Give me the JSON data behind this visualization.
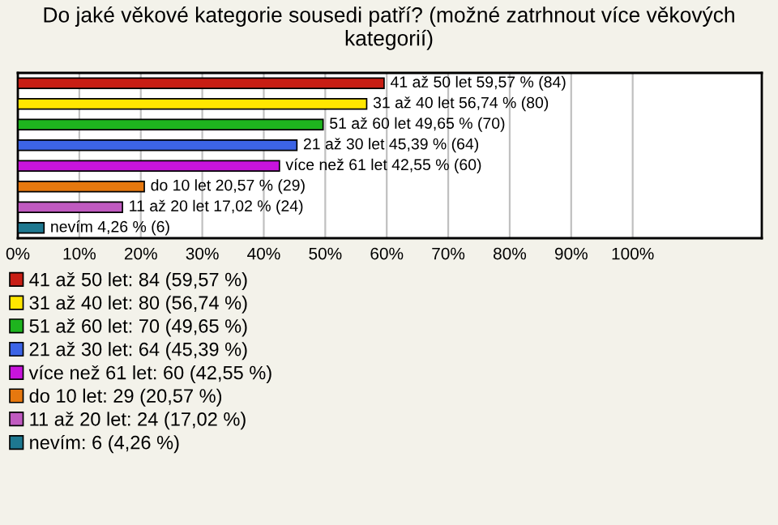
{
  "chart_data": {
    "type": "bar",
    "orientation": "horizontal",
    "title": "Do jaké věkové kategorie sousedi patří? (možné zatrhnout více věkových kategorií)",
    "categories": [
      null,
      null,
      null,
      null,
      null,
      null,
      null,
      null
    ],
    "series": [
      {
        "name": "41 až 50 let: 84 (59,57 %)",
        "color": "#c81e14",
        "values": [
          59.57,
          null,
          null,
          null,
          null,
          null,
          null,
          null
        ],
        "value_labels": [
          "41 až 50 let 59,57 % (84)",
          null,
          null,
          null,
          null,
          null,
          null,
          null
        ]
      },
      {
        "name": "31 až 40 let: 80 (56,74 %)",
        "color": "#ffe600",
        "values": [
          null,
          56.74,
          null,
          null,
          null,
          null,
          null,
          null
        ],
        "value_labels": [
          null,
          "31 až 40 let 56,74 % (80)",
          null,
          null,
          null,
          null,
          null,
          null
        ]
      },
      {
        "name": "51 až 60 let: 70 (49,65 %)",
        "color": "#1eb41e",
        "values": [
          null,
          null,
          49.65,
          null,
          null,
          null,
          null,
          null
        ],
        "value_labels": [
          null,
          null,
          "51 až 60 let 49,65 % (70)",
          null,
          null,
          null,
          null,
          null
        ]
      },
      {
        "name": "21 až 30 let: 64 (45,39 %)",
        "color": "#3c64e6",
        "values": [
          null,
          null,
          null,
          45.39,
          null,
          null,
          null,
          null
        ],
        "value_labels": [
          null,
          null,
          null,
          "21 až 30 let 45,39 % (64)",
          null,
          null,
          null,
          null
        ]
      },
      {
        "name": "více než 61 let: 60 (42,55 %)",
        "color": "#c814dc",
        "values": [
          null,
          null,
          null,
          null,
          42.55,
          null,
          null,
          null
        ],
        "value_labels": [
          null,
          null,
          null,
          null,
          "více než 61 let 42,55 % (60)",
          null,
          null,
          null
        ]
      },
      {
        "name": "do 10 let: 29 (20,57 %)",
        "color": "#e6780f",
        "values": [
          null,
          null,
          null,
          null,
          null,
          20.57,
          null,
          null
        ],
        "value_labels": [
          null,
          null,
          null,
          null,
          null,
          "do 10 let 20,57 % (29)",
          null,
          null
        ]
      },
      {
        "name": "11 až 20 let: 24 (17,02 %)",
        "color": "#c05ac0",
        "values": [
          null,
          null,
          null,
          null,
          null,
          null,
          17.02,
          null
        ],
        "value_labels": [
          null,
          null,
          null,
          null,
          null,
          null,
          "11 až 20 let 17,02 % (24)",
          null
        ]
      },
      {
        "name": "nevím: 6 (4,26 %)",
        "color": "#1e7890",
        "values": [
          null,
          null,
          null,
          null,
          null,
          null,
          null,
          4.26
        ],
        "value_labels": [
          null,
          null,
          null,
          null,
          null,
          null,
          null,
          "nevím 4,26 % (6)"
        ]
      }
    ],
    "xlim": [
      0,
      121
    ],
    "xticks": [
      {
        "value": 0,
        "label": "0%"
      },
      {
        "value": 10,
        "label": "10%"
      },
      {
        "value": 20,
        "label": "20%"
      },
      {
        "value": 30,
        "label": "30%"
      },
      {
        "value": 40,
        "label": "40%"
      },
      {
        "value": 50,
        "label": "50%"
      },
      {
        "value": 60,
        "label": "60%"
      },
      {
        "value": 70,
        "label": "70%"
      },
      {
        "value": 80,
        "label": "80%"
      },
      {
        "value": 90,
        "label": "90%"
      },
      {
        "value": 100,
        "label": "100%"
      }
    ],
    "grid": "x",
    "legend": "bottom"
  }
}
